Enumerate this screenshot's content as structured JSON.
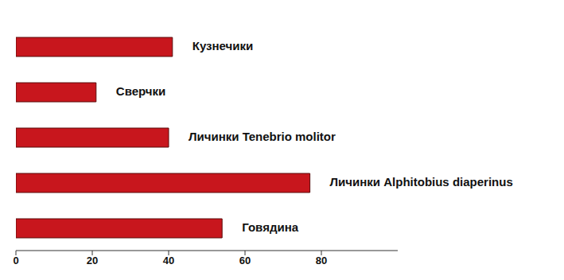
{
  "chart_data": {
    "type": "bar",
    "orientation": "horizontal",
    "categories": [
      "Кузнечики",
      "Сверчки",
      "Личинки Tenebrio molitor",
      "Личинки Alphitobius diaperinus",
      "Говядина"
    ],
    "values": [
      41,
      21,
      40,
      77,
      54
    ],
    "color": "#c8161d",
    "xlim": [
      0,
      100
    ],
    "xticks": [
      0,
      20,
      40,
      60,
      80
    ],
    "grid": false,
    "tick_labels": "x"
  }
}
